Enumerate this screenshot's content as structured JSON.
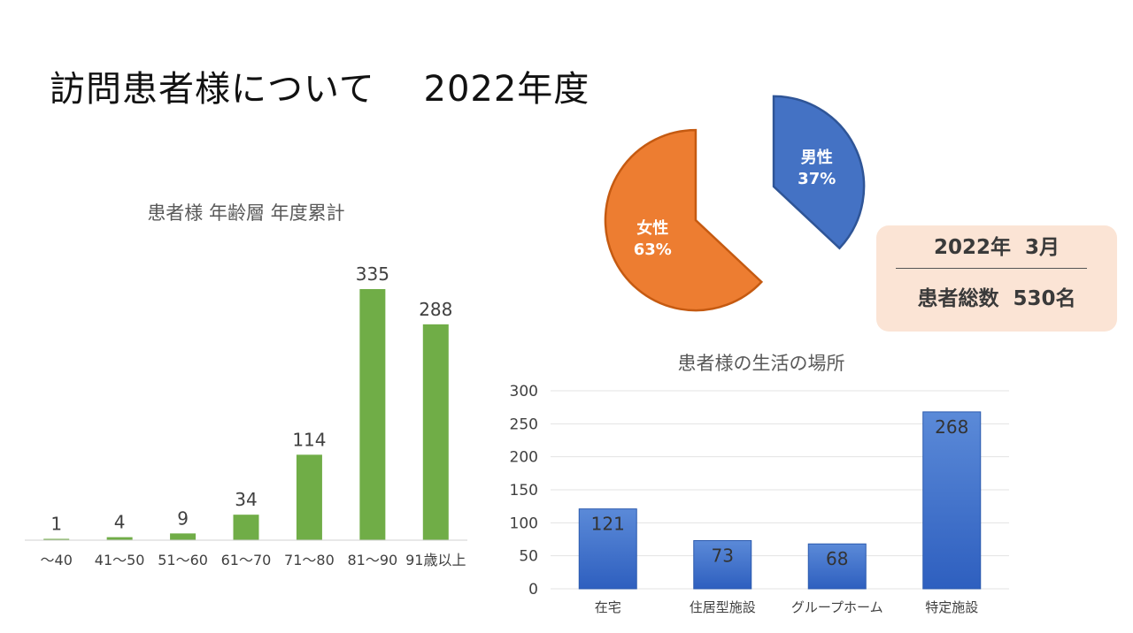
{
  "page": {
    "title": "訪問患者様について　 2022年度"
  },
  "summary": {
    "date": "2022年  3月",
    "total": "患者総数  530名"
  },
  "chart_data": [
    {
      "type": "bar",
      "title": "患者様  年齢層  年度累計",
      "categories": [
        "～40",
        "41～50",
        "51～60",
        "61～70",
        "71～80",
        "81～90",
        "91歳以上"
      ],
      "values": [
        1,
        4,
        9,
        34,
        114,
        335,
        288
      ],
      "data_labels": true,
      "ylim": [
        0,
        335
      ],
      "grid": false,
      "legend": "none",
      "colors": {
        "bar": "#70ad47"
      }
    },
    {
      "type": "pie",
      "slices": [
        {
          "name": "男性",
          "value": 37,
          "label": "37%",
          "color": "#4472c4",
          "exploded": true
        },
        {
          "name": "女性",
          "value": 63,
          "label": "63%",
          "color": "#ed7d31",
          "exploded": true
        }
      ],
      "legend": "none"
    },
    {
      "type": "bar",
      "title": "患者様の生活の場所",
      "categories": [
        "在宅",
        "住居型施設",
        "グループホーム",
        "特定施設"
      ],
      "values": [
        121,
        73,
        68,
        268
      ],
      "data_labels": true,
      "ylim": [
        0,
        300
      ],
      "yticks": [
        0,
        50,
        100,
        150,
        200,
        250,
        300
      ],
      "grid": true,
      "legend": "none",
      "colors": {
        "bar_top": "#5b8ad8",
        "bar_bottom": "#2e5fbf",
        "bar_edge": "#2b5aae"
      }
    }
  ]
}
